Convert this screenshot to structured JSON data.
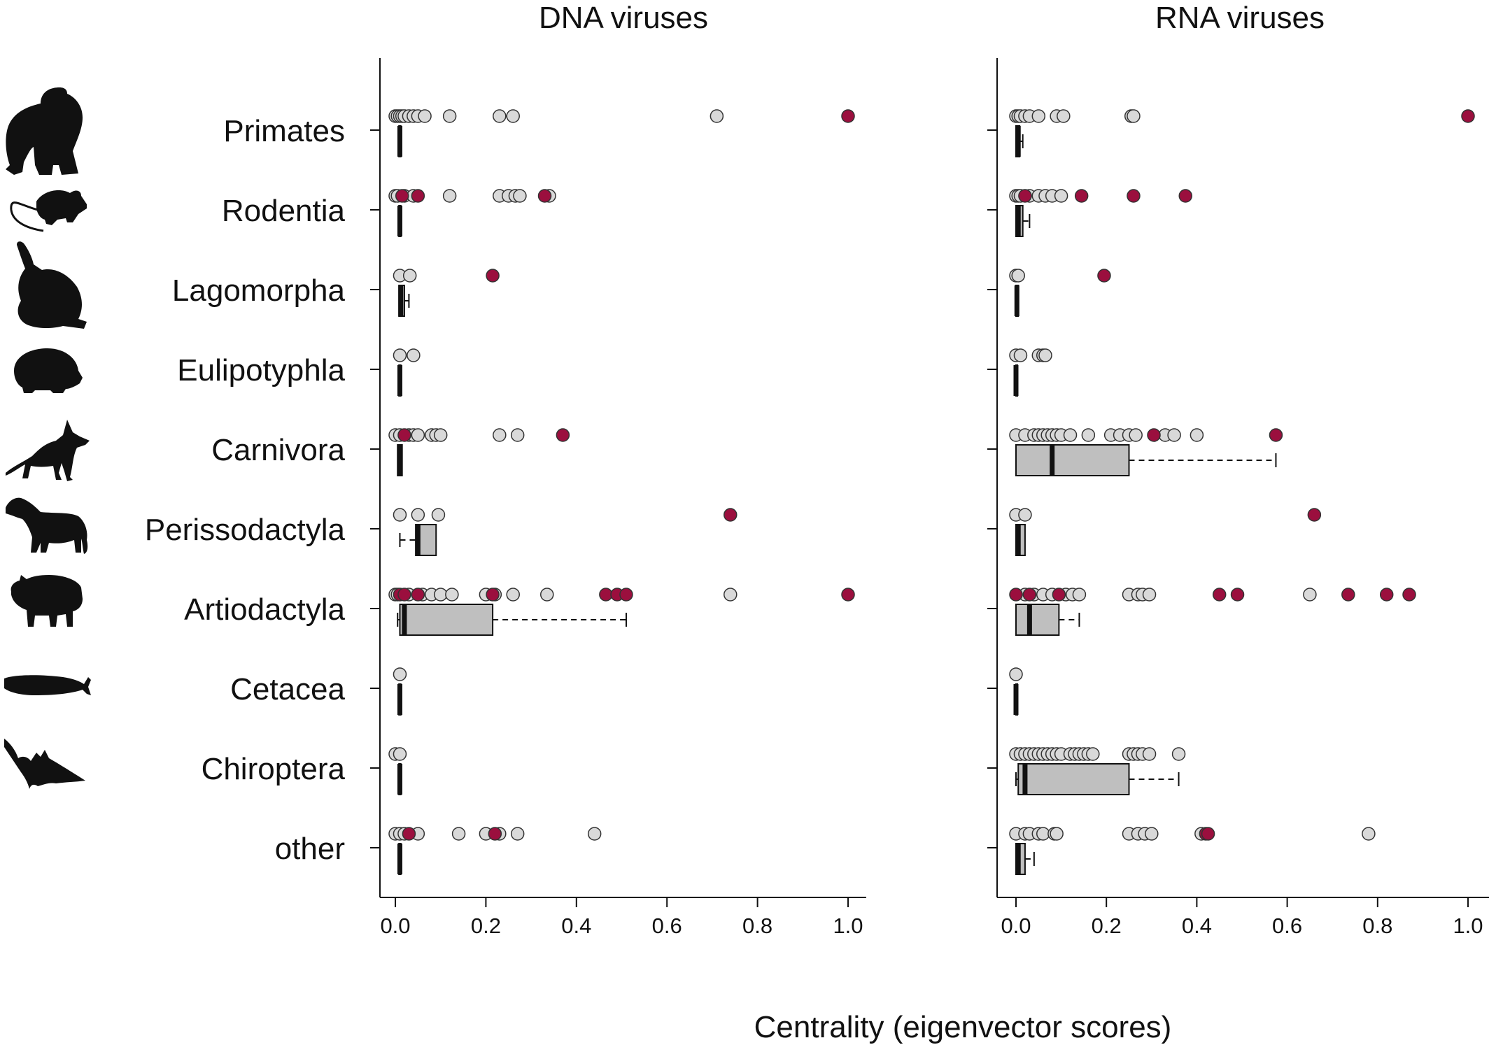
{
  "chart_data": {
    "type": "boxplot",
    "xlabel": "Centrality (eigenvector scores)",
    "xlim": [
      0,
      1
    ],
    "xticks": [
      "0.0",
      "0.2",
      "0.4",
      "0.6",
      "0.8",
      "1.0"
    ],
    "categories": [
      "Primates",
      "Rodentia",
      "Lagomorpha",
      "Eulipotyphla",
      "Carnivora",
      "Perissodactyla",
      "Artiodactyla",
      "Cetacea",
      "Chiroptera",
      "other"
    ],
    "category_icons": [
      "gorilla-icon",
      "rat-icon",
      "hare-icon",
      "hedgehog-icon",
      "fox-icon",
      "horse-icon",
      "yak-icon",
      "sperm-whale-icon",
      "bat-icon",
      ""
    ],
    "colors": {
      "highlight_point": "#9b0f3e",
      "point": "#d9d9d9",
      "box_fill": "#bfbfbf",
      "line": "#111111"
    },
    "panels": [
      {
        "title": "DNA viruses",
        "series": [
          {
            "category": "Primates",
            "box": {
              "q1": 0.008,
              "median": 0.01,
              "q3": 0.012,
              "lo": 0.008,
              "hi": 0.012
            },
            "points": [
              0.0,
              0.005,
              0.01,
              0.015,
              0.02,
              0.03,
              0.04,
              0.05,
              0.065,
              0.12,
              0.23,
              0.26,
              0.71
            ],
            "highlights": [
              1.0
            ]
          },
          {
            "category": "Rodentia",
            "box": {
              "q1": 0.008,
              "median": 0.01,
              "q3": 0.012,
              "lo": 0.008,
              "hi": 0.012
            },
            "points": [
              0.0,
              0.005,
              0.02,
              0.04,
              0.12,
              0.23,
              0.25,
              0.265,
              0.275,
              0.34
            ],
            "highlights": [
              0.015,
              0.05,
              0.33
            ]
          },
          {
            "category": "Lagomorpha",
            "box": {
              "q1": 0.008,
              "median": 0.012,
              "q3": 0.02,
              "lo": 0.008,
              "hi": 0.03
            },
            "points": [
              0.01,
              0.032
            ],
            "highlights": [
              0.215
            ]
          },
          {
            "category": "Eulipotyphla",
            "box": {
              "q1": 0.008,
              "median": 0.01,
              "q3": 0.012,
              "lo": 0.008,
              "hi": 0.012
            },
            "points": [
              0.01,
              0.04
            ],
            "highlights": []
          },
          {
            "category": "Carnivora",
            "box": {
              "q1": 0.005,
              "median": 0.01,
              "q3": 0.015,
              "lo": 0.005,
              "hi": 0.015
            },
            "points": [
              0.0,
              0.01,
              0.03,
              0.04,
              0.05,
              0.08,
              0.09,
              0.1,
              0.23,
              0.27
            ],
            "highlights": [
              0.02,
              0.37
            ]
          },
          {
            "category": "Perissodactyla",
            "box": {
              "q1": 0.045,
              "median": 0.05,
              "q3": 0.09,
              "lo": 0.01,
              "hi": 0.09
            },
            "points": [
              0.01,
              0.05,
              0.095
            ],
            "highlights": [
              0.74
            ]
          },
          {
            "category": "Artiodactyla",
            "box": {
              "q1": 0.01,
              "median": 0.02,
              "q3": 0.215,
              "lo": 0.005,
              "hi": 0.51
            },
            "points": [
              0.0,
              0.005,
              0.03,
              0.06,
              0.08,
              0.1,
              0.125,
              0.2,
              0.22,
              0.26,
              0.335,
              0.74
            ],
            "highlights": [
              0.01,
              0.02,
              0.05,
              0.215,
              0.465,
              0.49,
              0.51,
              1.0
            ]
          },
          {
            "category": "Cetacea",
            "box": {
              "q1": 0.008,
              "median": 0.01,
              "q3": 0.012,
              "lo": 0.008,
              "hi": 0.012
            },
            "points": [
              0.01
            ],
            "highlights": []
          },
          {
            "category": "Chiroptera",
            "box": {
              "q1": 0.008,
              "median": 0.01,
              "q3": 0.012,
              "lo": 0.008,
              "hi": 0.012
            },
            "points": [
              0.0,
              0.01
            ],
            "highlights": []
          },
          {
            "category": "other",
            "box": {
              "q1": 0.008,
              "median": 0.01,
              "q3": 0.012,
              "lo": 0.008,
              "hi": 0.012
            },
            "points": [
              0.0,
              0.01,
              0.02,
              0.05,
              0.14,
              0.2,
              0.23,
              0.27,
              0.44
            ],
            "highlights": [
              0.03,
              0.22
            ]
          }
        ]
      },
      {
        "title": "RNA viruses",
        "series": [
          {
            "category": "Primates",
            "box": {
              "q1": 0.0,
              "median": 0.005,
              "q3": 0.008,
              "lo": 0.0,
              "hi": 0.015
            },
            "points": [
              0.0,
              0.005,
              0.01,
              0.02,
              0.03,
              0.05,
              0.09,
              0.105,
              0.255,
              0.26
            ],
            "highlights": [
              1.0
            ]
          },
          {
            "category": "Rodentia",
            "box": {
              "q1": 0.0,
              "median": 0.005,
              "q3": 0.015,
              "lo": 0.0,
              "hi": 0.03
            },
            "points": [
              0.0,
              0.005,
              0.01,
              0.03,
              0.05,
              0.065,
              0.08,
              0.1
            ],
            "highlights": [
              0.02,
              0.145,
              0.26,
              0.375
            ]
          },
          {
            "category": "Lagomorpha",
            "box": {
              "q1": 0.0,
              "median": 0.002,
              "q3": 0.005,
              "lo": 0.0,
              "hi": 0.005
            },
            "points": [
              0.0,
              0.005
            ],
            "highlights": [
              0.195
            ]
          },
          {
            "category": "Eulipotyphla",
            "box": {
              "q1": 0.0,
              "median": 0.0,
              "q3": 0.002,
              "lo": 0.0,
              "hi": 0.002
            },
            "points": [
              0.0,
              0.01,
              0.05,
              0.06,
              0.065
            ],
            "highlights": []
          },
          {
            "category": "Carnivora",
            "box": {
              "q1": 0.0,
              "median": 0.08,
              "q3": 0.25,
              "lo": 0.0,
              "hi": 0.575
            },
            "points": [
              0.0,
              0.02,
              0.04,
              0.05,
              0.06,
              0.07,
              0.08,
              0.09,
              0.1,
              0.12,
              0.16,
              0.21,
              0.23,
              0.25,
              0.265,
              0.33,
              0.35,
              0.4
            ],
            "highlights": [
              0.305,
              0.575
            ]
          },
          {
            "category": "Perissodactyla",
            "box": {
              "q1": 0.0,
              "median": 0.005,
              "q3": 0.02,
              "lo": 0.0,
              "hi": 0.02
            },
            "points": [
              0.0,
              0.02
            ],
            "highlights": [
              0.66
            ]
          },
          {
            "category": "Artiodactyla",
            "box": {
              "q1": 0.0,
              "median": 0.03,
              "q3": 0.095,
              "lo": 0.0,
              "hi": 0.14
            },
            "points": [
              0.02,
              0.04,
              0.06,
              0.08,
              0.11,
              0.125,
              0.14,
              0.25,
              0.27,
              0.28,
              0.295,
              0.65
            ],
            "highlights": [
              0.0,
              0.03,
              0.095,
              0.45,
              0.49,
              0.735,
              0.82,
              0.87
            ]
          },
          {
            "category": "Cetacea",
            "box": {
              "q1": 0.0,
              "median": 0.0,
              "q3": 0.002,
              "lo": 0.0,
              "hi": 0.002
            },
            "points": [
              0.0
            ],
            "highlights": []
          },
          {
            "category": "Chiroptera",
            "box": {
              "q1": 0.005,
              "median": 0.02,
              "q3": 0.25,
              "lo": 0.0,
              "hi": 0.36
            },
            "points": [
              0.0,
              0.01,
              0.02,
              0.03,
              0.04,
              0.05,
              0.06,
              0.07,
              0.08,
              0.09,
              0.1,
              0.12,
              0.13,
              0.14,
              0.15,
              0.16,
              0.17,
              0.25,
              0.26,
              0.27,
              0.28,
              0.295,
              0.36
            ],
            "highlights": []
          },
          {
            "category": "other",
            "box": {
              "q1": 0.0,
              "median": 0.005,
              "q3": 0.02,
              "lo": 0.0,
              "hi": 0.04
            },
            "points": [
              0.0,
              0.02,
              0.03,
              0.05,
              0.06,
              0.085,
              0.09,
              0.25,
              0.27,
              0.285,
              0.3,
              0.41,
              0.78
            ],
            "highlights": [
              0.42,
              0.425
            ]
          }
        ]
      }
    ]
  }
}
